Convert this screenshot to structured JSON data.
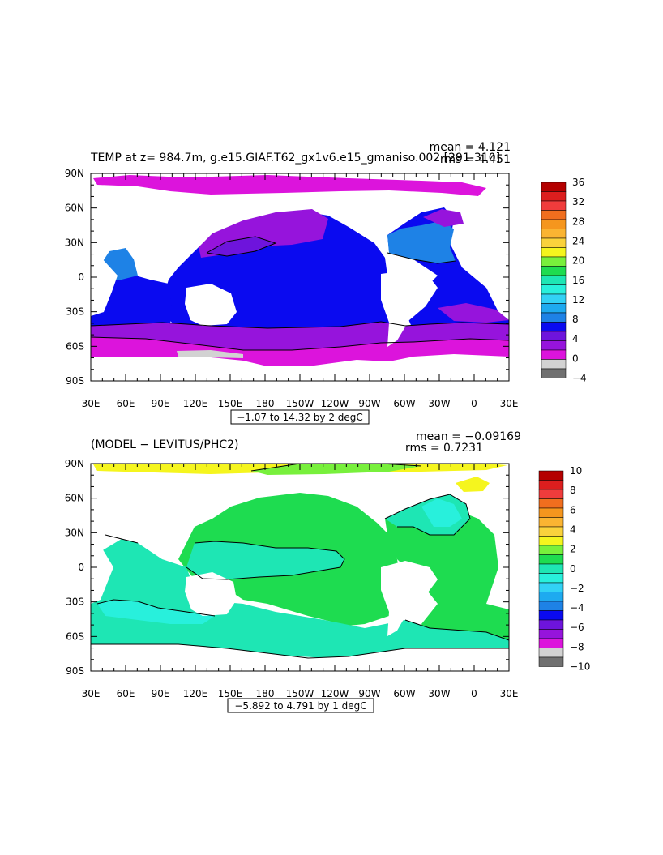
{
  "chart_data": [
    {
      "type": "heatmap",
      "title": "TEMP at z= 984.7m, g.e15.GIAF.T62_gx1v6.e15_gmaniso.002 [291-310]",
      "stats": {
        "mean": "mean = 4.121",
        "rms": "rms = 4.451"
      },
      "range_note": "−1.07 to 14.32 by 2 degC",
      "x_ticks": [
        "30E",
        "60E",
        "90E",
        "120E",
        "150E",
        "180",
        "150W",
        "120W",
        "90W",
        "60W",
        "30W",
        "0",
        "30E"
      ],
      "y_ticks": [
        "90N",
        "60N",
        "30N",
        "0",
        "30S",
        "60S",
        "90S"
      ],
      "xlim": [
        30,
        390
      ],
      "ylim": [
        -90,
        90
      ],
      "colorbar": {
        "labels": [
          "36",
          "32",
          "28",
          "24",
          "20",
          "16",
          "12",
          "8",
          "4",
          "0",
          "−4"
        ],
        "colors": [
          "#b40000",
          "#dc1e1e",
          "#f03c3c",
          "#f06e1e",
          "#f5961e",
          "#fab432",
          "#fad23c",
          "#f5f51e",
          "#78f03c",
          "#1edc50",
          "#1ee6b4",
          "#28f0dc",
          "#32d2f5",
          "#1eaaf0",
          "#1e82e6",
          "#0a0af0",
          "#6e14dc",
          "#9614dc",
          "#dc14dc",
          "#d2d2d2",
          "#707070"
        ]
      }
    },
    {
      "type": "heatmap",
      "title": "(MODEL − LEVITUS/PHC2)",
      "stats": {
        "mean": "mean = −0.09169",
        "rms": "rms = 0.7231"
      },
      "range_note": "−5.892 to 4.791 by 1 degC",
      "x_ticks": [
        "30E",
        "60E",
        "90E",
        "120E",
        "150E",
        "180",
        "150W",
        "120W",
        "90W",
        "60W",
        "30W",
        "0",
        "30E"
      ],
      "y_ticks": [
        "90N",
        "60N",
        "30N",
        "0",
        "30S",
        "60S",
        "90S"
      ],
      "xlim": [
        30,
        390
      ],
      "ylim": [
        -90,
        90
      ],
      "colorbar": {
        "labels": [
          "10",
          "8",
          "6",
          "4",
          "2",
          "0",
          "−2",
          "−4",
          "−6",
          "−8",
          "−10"
        ],
        "colors": [
          "#b40000",
          "#dc1e1e",
          "#f03c3c",
          "#f06e1e",
          "#f5961e",
          "#fab432",
          "#fad23c",
          "#f5f51e",
          "#78f03c",
          "#1edc50",
          "#1ee6b4",
          "#28f0dc",
          "#32d2f5",
          "#1eaaf0",
          "#1e82e6",
          "#0a0af0",
          "#6e14dc",
          "#9614dc",
          "#dc14dc",
          "#d2d2d2",
          "#707070"
        ]
      }
    }
  ]
}
